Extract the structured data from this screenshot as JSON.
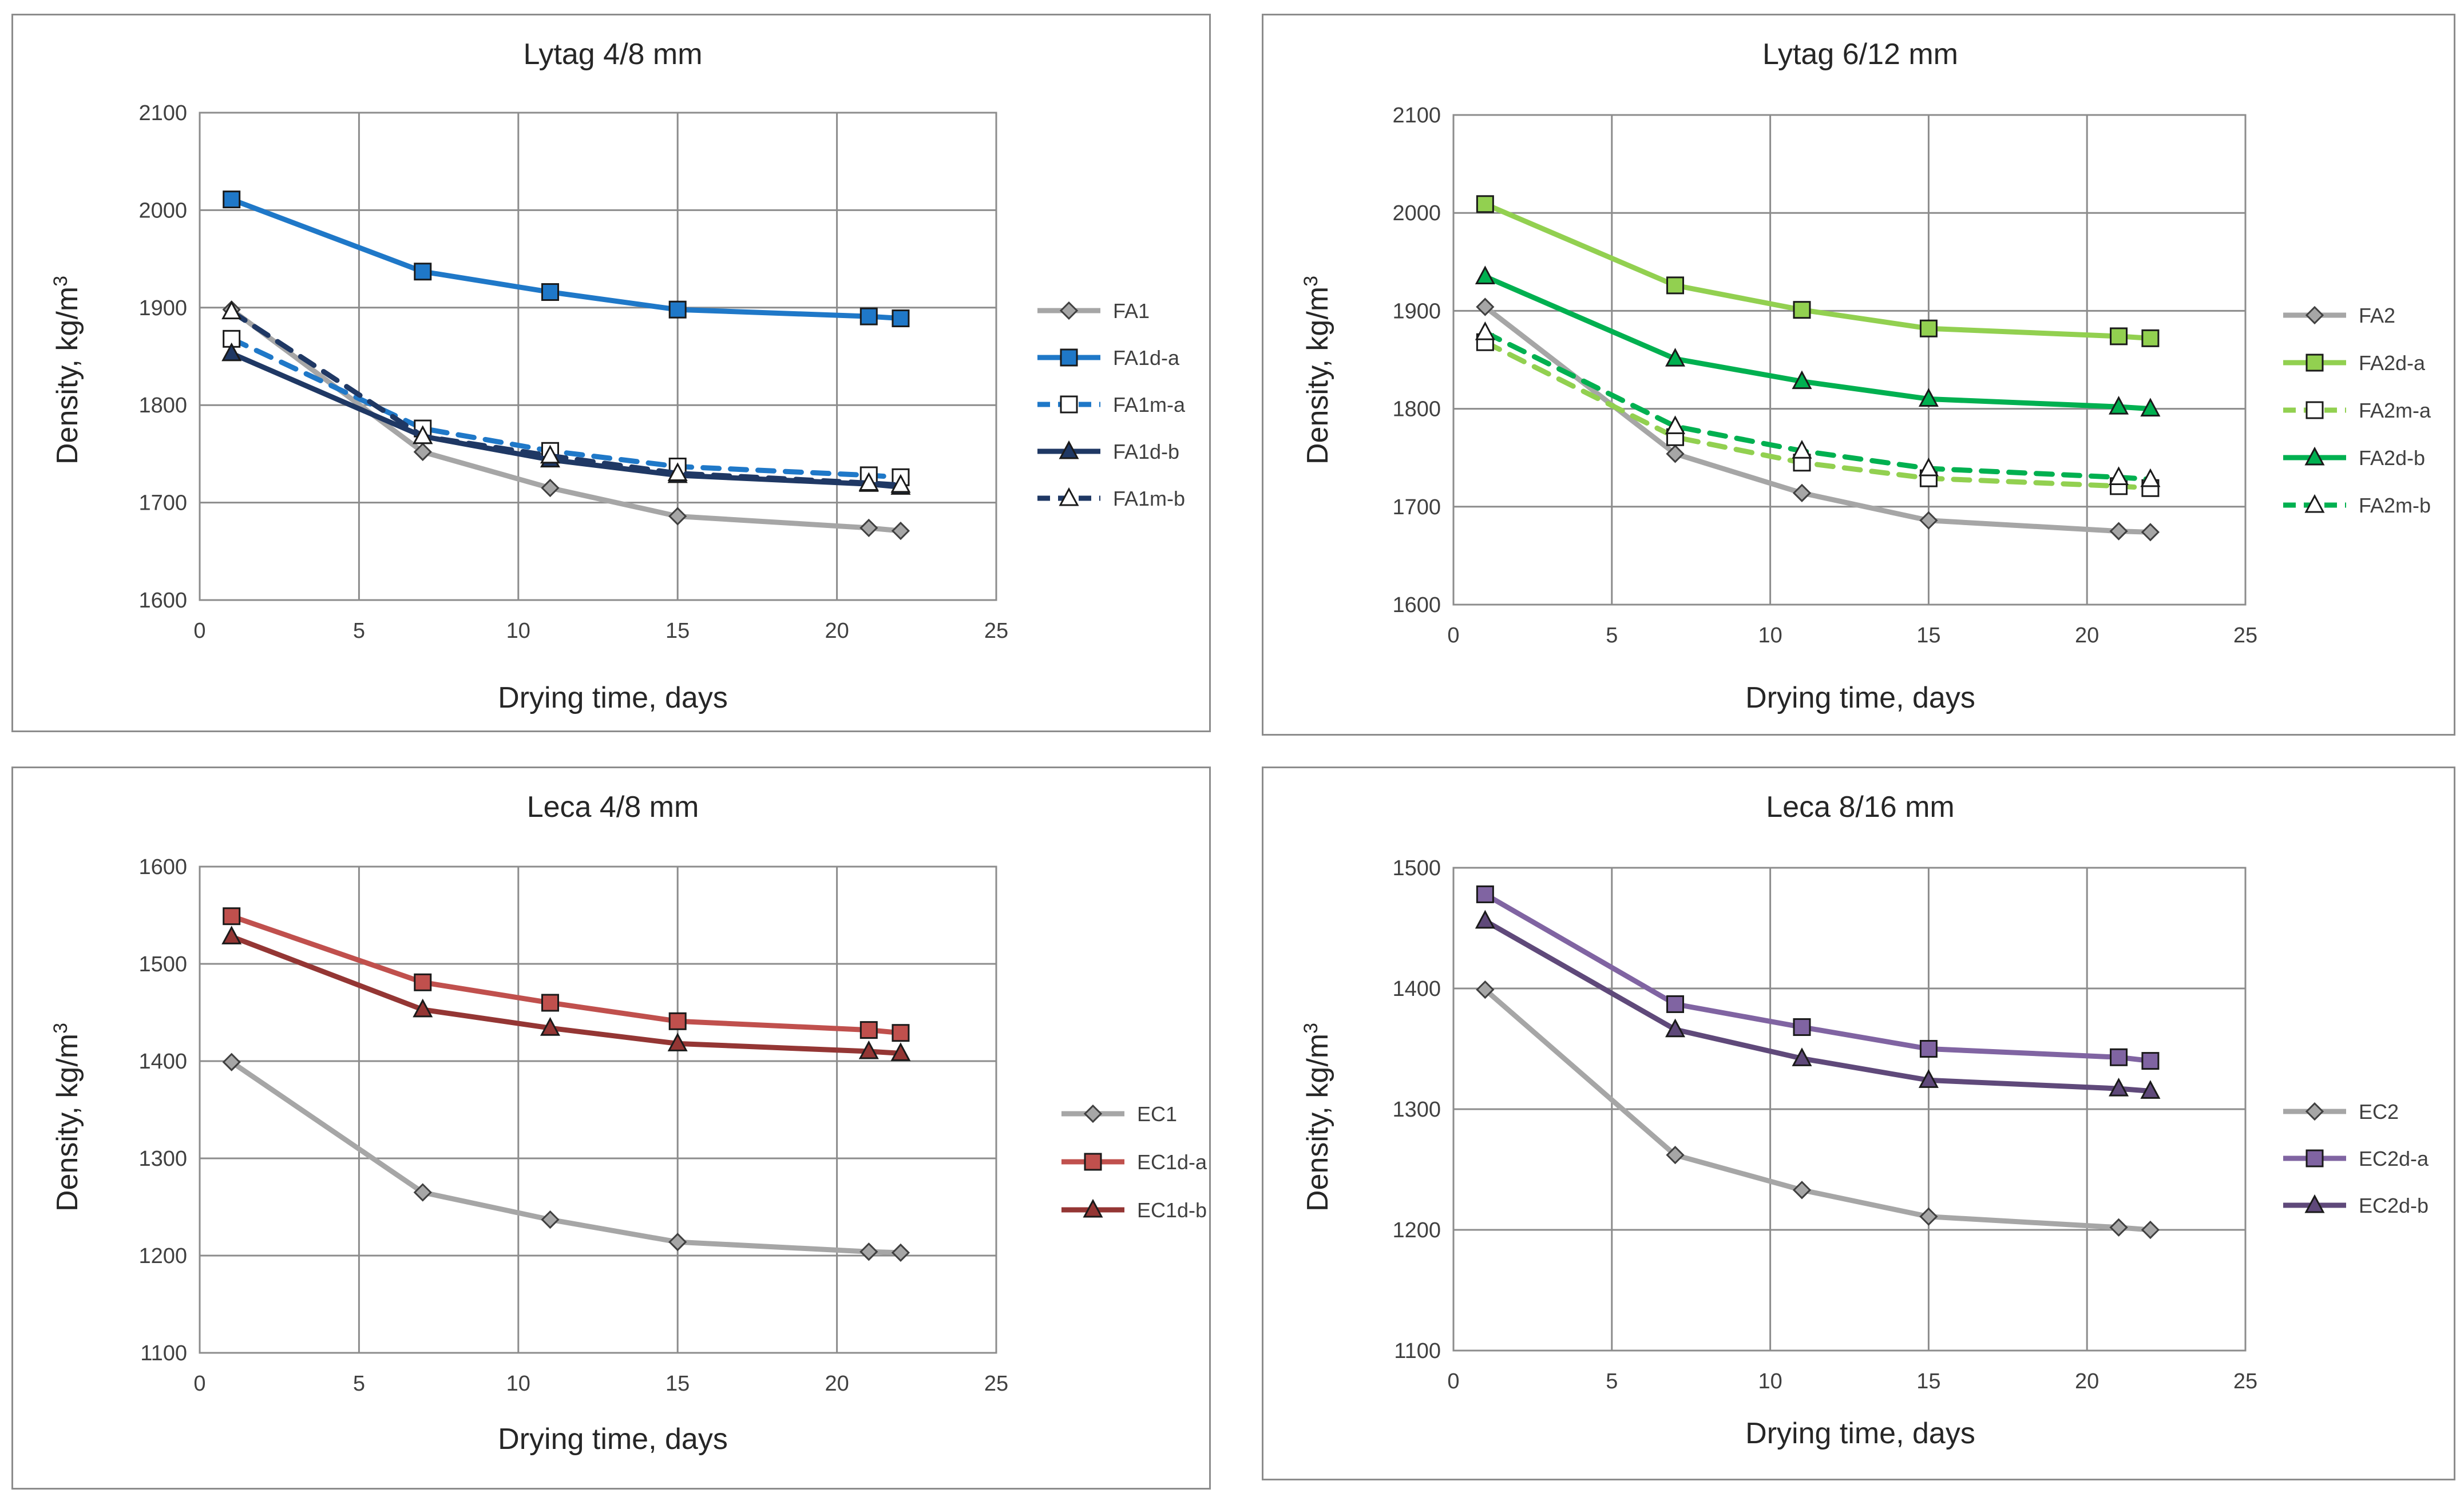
{
  "chart_data": [
    {
      "type": "line",
      "title": "Lytag 4/8 mm",
      "xlabel": "Drying time, days",
      "ylabel_main": "Density,  kg/m",
      "ylabel_sup": "3",
      "xlim": [
        0,
        25
      ],
      "ylim": [
        1600,
        2100
      ],
      "xticks": [
        0,
        5,
        10,
        15,
        20,
        25
      ],
      "yticks": [
        1600,
        1700,
        1800,
        1900,
        2000,
        2100
      ],
      "grid": true,
      "legend": "right",
      "x": [
        1,
        7,
        11,
        15,
        21,
        22
      ],
      "series": [
        {
          "name": "FA1",
          "color": "#a6a6a6",
          "dash": false,
          "marker": "diamond",
          "fill": "#a6a6a6",
          "values": [
            1898,
            1752,
            1715,
            1686,
            1674,
            1671
          ]
        },
        {
          "name": "FA1d-a",
          "color": "#1f78c8",
          "dash": false,
          "marker": "square",
          "fill": "#1f78c8",
          "values": [
            2011,
            1937,
            1916,
            1898,
            1891,
            1889
          ]
        },
        {
          "name": "FA1m-a",
          "color": "#1f78c8",
          "dash": true,
          "marker": "square",
          "fill": "#ffffff",
          "values": [
            1868,
            1776,
            1753,
            1737,
            1728,
            1726
          ]
        },
        {
          "name": "FA1d-b",
          "color": "#1f3864",
          "dash": false,
          "marker": "triangle",
          "fill": "#1f3864",
          "values": [
            1853,
            1768,
            1744,
            1728,
            1719,
            1716
          ]
        },
        {
          "name": "FA1m-b",
          "color": "#1f3864",
          "dash": true,
          "marker": "triangle",
          "fill": "#ffffff",
          "values": [
            1896,
            1768,
            1748,
            1730,
            1720,
            1718
          ]
        }
      ]
    },
    {
      "type": "line",
      "title": "Lytag 6/12 mm",
      "xlabel": "Drying time, days",
      "ylabel_main": "Density,  kg/m",
      "ylabel_sup": "3",
      "xlim": [
        0,
        25
      ],
      "ylim": [
        1600,
        2100
      ],
      "xticks": [
        0,
        5,
        10,
        15,
        20,
        25
      ],
      "yticks": [
        1600,
        1700,
        1800,
        1900,
        2000,
        2100
      ],
      "grid": true,
      "legend": "right",
      "x": [
        1,
        7,
        11,
        15,
        21,
        22
      ],
      "series": [
        {
          "name": "FA2",
          "color": "#a6a6a6",
          "dash": false,
          "marker": "diamond",
          "fill": "#a6a6a6",
          "values": [
            1904,
            1754,
            1714,
            1686,
            1675,
            1674
          ]
        },
        {
          "name": "FA2d-a",
          "color": "#92d050",
          "dash": false,
          "marker": "square",
          "fill": "#92d050",
          "values": [
            2009,
            1926,
            1901,
            1882,
            1874,
            1872
          ]
        },
        {
          "name": "FA2m-a",
          "color": "#92d050",
          "dash": true,
          "marker": "square",
          "fill": "#ffffff",
          "values": [
            1868,
            1771,
            1745,
            1729,
            1721,
            1719
          ]
        },
        {
          "name": "FA2d-b",
          "color": "#00b050",
          "dash": false,
          "marker": "triangle",
          "fill": "#00b050",
          "values": [
            1935,
            1851,
            1828,
            1810,
            1802,
            1800
          ]
        },
        {
          "name": "FA2m-b",
          "color": "#00b050",
          "dash": true,
          "marker": "triangle",
          "fill": "#ffffff",
          "values": [
            1878,
            1782,
            1757,
            1739,
            1730,
            1728
          ]
        }
      ]
    },
    {
      "type": "line",
      "title": "Leca 4/8 mm",
      "xlabel": "Drying time, days",
      "ylabel_main": "Density,  kg/m",
      "ylabel_sup": "3",
      "xlim": [
        0,
        25
      ],
      "ylim": [
        1100,
        1600
      ],
      "xticks": [
        0,
        5,
        10,
        15,
        20,
        25
      ],
      "yticks": [
        1100,
        1200,
        1300,
        1400,
        1500,
        1600
      ],
      "grid": true,
      "legend": "right",
      "x": [
        1,
        7,
        11,
        15,
        21,
        22
      ],
      "series": [
        {
          "name": "EC1",
          "color": "#a6a6a6",
          "dash": false,
          "marker": "diamond",
          "fill": "#a6a6a6",
          "values": [
            1399,
            1265,
            1237,
            1214,
            1204,
            1203
          ]
        },
        {
          "name": "EC1d-a",
          "color": "#c0504d",
          "dash": false,
          "marker": "square",
          "fill": "#c0504d",
          "values": [
            1549,
            1481,
            1460,
            1441,
            1432,
            1429
          ]
        },
        {
          "name": "EC1d-b",
          "color": "#943634",
          "dash": false,
          "marker": "triangle",
          "fill": "#943634",
          "values": [
            1528,
            1453,
            1434,
            1418,
            1410,
            1408
          ]
        }
      ]
    },
    {
      "type": "line",
      "title": "Leca 8/16 mm",
      "xlabel": "Drying time, days",
      "ylabel_main": "Density,  kg/m",
      "ylabel_sup": "3",
      "xlim": [
        0,
        25
      ],
      "ylim": [
        1100,
        1500
      ],
      "xticks": [
        0,
        5,
        10,
        15,
        20,
        25
      ],
      "yticks": [
        1100,
        1200,
        1300,
        1400,
        1500
      ],
      "grid": true,
      "legend": "right",
      "x": [
        1,
        7,
        11,
        15,
        21,
        22
      ],
      "series": [
        {
          "name": "EC2",
          "color": "#a6a6a6",
          "dash": false,
          "marker": "diamond",
          "fill": "#a6a6a6",
          "values": [
            1399,
            1262,
            1233,
            1211,
            1202,
            1200
          ]
        },
        {
          "name": "EC2d-a",
          "color": "#8064a2",
          "dash": false,
          "marker": "square",
          "fill": "#8064a2",
          "values": [
            1478,
            1387,
            1368,
            1350,
            1343,
            1340
          ]
        },
        {
          "name": "EC2d-b",
          "color": "#5f497a",
          "dash": false,
          "marker": "triangle",
          "fill": "#5f497a",
          "values": [
            1456,
            1366,
            1342,
            1324,
            1317,
            1315
          ]
        }
      ]
    }
  ]
}
